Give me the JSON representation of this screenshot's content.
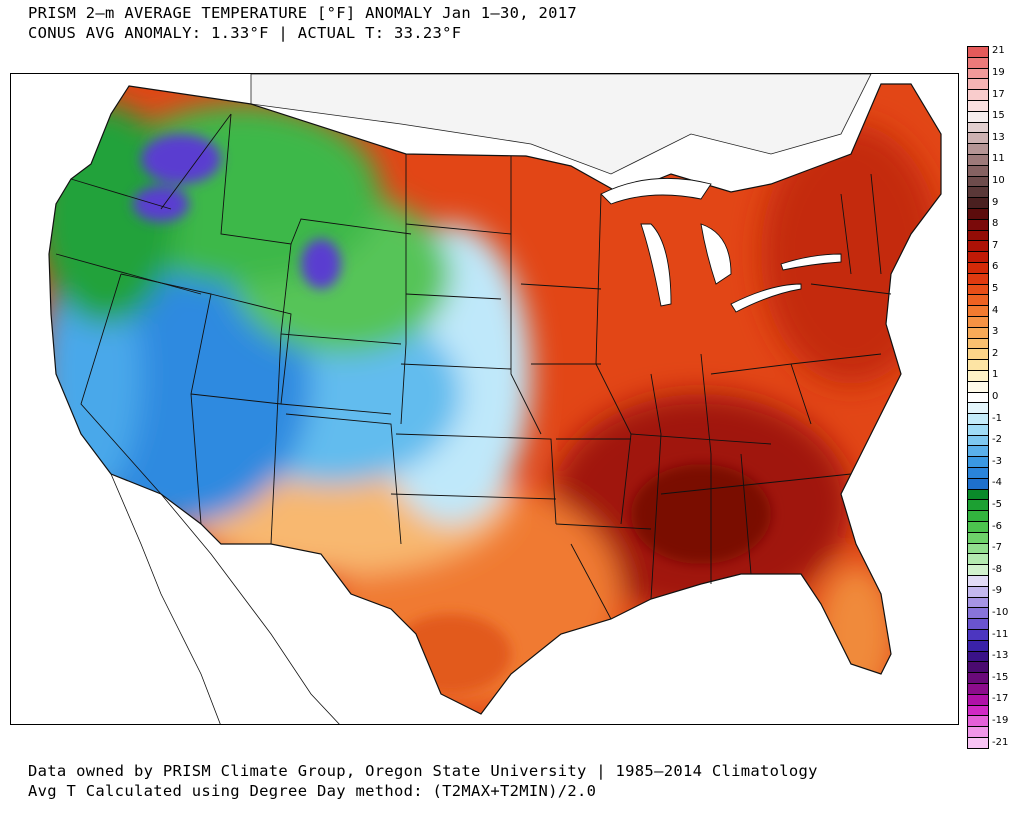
{
  "header": {
    "title_line1": "PRISM 2–m AVERAGE TEMPERATURE [°F] ANOMALY Jan 1–30, 2017",
    "title_line2": "CONUS AVG ANOMALY: 1.33°F | ACTUAL T: 33.23°F"
  },
  "footer": {
    "line1": "Data owned by PRISM Climate Group, Oregon State University | 1985–2014 Climatology",
    "line2": "Avg T Calculated using Degree Day method: (T2MAX+T2MIN)/2.0"
  },
  "legend": {
    "levels": [
      {
        "label": "21",
        "color": "#e45a5a"
      },
      {
        "label": "",
        "color": "#ec7a7a"
      },
      {
        "label": "19",
        "color": "#f29a9a"
      },
      {
        "label": "",
        "color": "#f6b4b4"
      },
      {
        "label": "17",
        "color": "#f9cccc"
      },
      {
        "label": "",
        "color": "#fbe0e0"
      },
      {
        "label": "15",
        "color": "#f6eeee"
      },
      {
        "label": "",
        "color": "#e2cfcf"
      },
      {
        "label": "13",
        "color": "#cdb1b1"
      },
      {
        "label": "",
        "color": "#b59595"
      },
      {
        "label": "11",
        "color": "#9d7a7a"
      },
      {
        "label": "",
        "color": "#866262"
      },
      {
        "label": "10",
        "color": "#6e4c4c"
      },
      {
        "label": "",
        "color": "#5a3838"
      },
      {
        "label": "9",
        "color": "#4a2020"
      },
      {
        "label": "",
        "color": "#5c0c0c"
      },
      {
        "label": "8",
        "color": "#7a0a0a"
      },
      {
        "label": "",
        "color": "#930d06"
      },
      {
        "label": "7",
        "color": "#ac1206"
      },
      {
        "label": "",
        "color": "#c01a06"
      },
      {
        "label": "6",
        "color": "#d42a08"
      },
      {
        "label": "",
        "color": "#e03a10"
      },
      {
        "label": "5",
        "color": "#e84e18"
      },
      {
        "label": "",
        "color": "#ee6222"
      },
      {
        "label": "4",
        "color": "#f27a30"
      },
      {
        "label": "",
        "color": "#f59244"
      },
      {
        "label": "3",
        "color": "#f8aa58"
      },
      {
        "label": "",
        "color": "#fac070"
      },
      {
        "label": "2",
        "color": "#fcd488"
      },
      {
        "label": "",
        "color": "#fde4a4"
      },
      {
        "label": "1",
        "color": "#fef2c6"
      },
      {
        "label": "",
        "color": "#fffbea"
      },
      {
        "label": "0",
        "color": "#ffffff"
      },
      {
        "label": "",
        "color": "#e4f6fc"
      },
      {
        "label": "-1",
        "color": "#c4ecfa"
      },
      {
        "label": "",
        "color": "#a0dcf6"
      },
      {
        "label": "-2",
        "color": "#7ec8f0"
      },
      {
        "label": "",
        "color": "#5ab0ea"
      },
      {
        "label": "-3",
        "color": "#3a98e2"
      },
      {
        "label": "",
        "color": "#2a84da"
      },
      {
        "label": "-4",
        "color": "#1e70cc"
      },
      {
        "label": "",
        "color": "#0a8a2a"
      },
      {
        "label": "-5",
        "color": "#1ca032"
      },
      {
        "label": "",
        "color": "#32b43e"
      },
      {
        "label": "-6",
        "color": "#4cc44e"
      },
      {
        "label": "",
        "color": "#6ed26a"
      },
      {
        "label": "-7",
        "color": "#92de8e"
      },
      {
        "label": "",
        "color": "#b4eab0"
      },
      {
        "label": "-8",
        "color": "#d2f2ce"
      },
      {
        "label": "",
        "color": "#e2dcf6"
      },
      {
        "label": "-9",
        "color": "#c4b8ee"
      },
      {
        "label": "",
        "color": "#a694e4"
      },
      {
        "label": "-10",
        "color": "#8874da"
      },
      {
        "label": "",
        "color": "#6a54ce"
      },
      {
        "label": "-11",
        "color": "#4c36c0"
      },
      {
        "label": "",
        "color": "#3a22a8"
      },
      {
        "label": "-13",
        "color": "#3a1288"
      },
      {
        "label": "",
        "color": "#4a0a70"
      },
      {
        "label": "-15",
        "color": "#6a0a7a"
      },
      {
        "label": "",
        "color": "#8c0c8c"
      },
      {
        "label": "-17",
        "color": "#b010a8"
      },
      {
        "label": "",
        "color": "#d028c4"
      },
      {
        "label": "-19",
        "color": "#e460d8"
      },
      {
        "label": "",
        "color": "#f096e8"
      },
      {
        "label": "-21",
        "color": "#f8c4f4"
      }
    ]
  },
  "map": {
    "region_colors": {
      "pacific_nw": "#22a23a",
      "idaho_cold": "#5a3ed0",
      "montana_green": "#3cb84a",
      "wyoming_green": "#56c458",
      "great_basin_blue": "#2e8ae0",
      "california_blue": "#4aa8ea",
      "colorado_blue": "#62bcee",
      "plains_lightblue": "#bfe8fa",
      "southwest_orange": "#f8b870",
      "texas_orange": "#f07a30",
      "midwest_red": "#e24616",
      "southeast_darkred": "#a01208",
      "northeast_red": "#c42a0a",
      "florida_orange": "#f08a3a",
      "canada_gray": "#f4f4f4"
    }
  }
}
